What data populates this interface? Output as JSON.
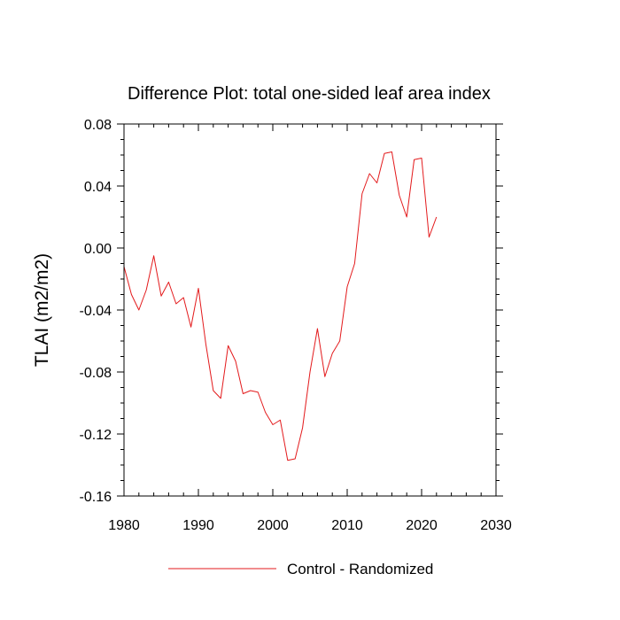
{
  "chart_data": {
    "type": "line",
    "title": "Difference Plot: total one-sided leaf area index",
    "xlabel": "",
    "ylabel": "TLAI  (m2/m2)",
    "xlim": [
      1980,
      2030
    ],
    "ylim": [
      -0.16,
      0.08
    ],
    "x_ticks": [
      1980,
      1990,
      2000,
      2010,
      2020,
      2030
    ],
    "y_ticks": [
      0.08,
      0.04,
      0.0,
      -0.04,
      -0.08,
      -0.12,
      -0.16
    ],
    "x_tick_labels": [
      "1980",
      "1990",
      "2000",
      "2010",
      "2020",
      "2030"
    ],
    "y_tick_labels": [
      "0.08",
      "0.04",
      "0.00",
      "-0.04",
      "-0.08",
      "-0.12",
      "-0.16"
    ],
    "grid": false,
    "legend_position": "bottom",
    "series": [
      {
        "name": "Control - Randomized",
        "color": "#e31a1c",
        "x": [
          1980,
          1981,
          1982,
          1983,
          1984,
          1985,
          1986,
          1987,
          1988,
          1989,
          1990,
          1991,
          1992,
          1993,
          1994,
          1995,
          1996,
          1997,
          1998,
          1999,
          2000,
          2001,
          2002,
          2003,
          2004,
          2005,
          2006,
          2007,
          2008,
          2009,
          2010,
          2011,
          2012,
          2013,
          2014,
          2015,
          2016,
          2017,
          2018,
          2019,
          2020,
          2021,
          2022
        ],
        "values": [
          -0.012,
          -0.03,
          -0.04,
          -0.027,
          -0.005,
          -0.031,
          -0.022,
          -0.036,
          -0.032,
          -0.051,
          -0.026,
          -0.062,
          -0.092,
          -0.097,
          -0.063,
          -0.073,
          -0.094,
          -0.092,
          -0.093,
          -0.106,
          -0.114,
          -0.111,
          -0.137,
          -0.136,
          -0.116,
          -0.08,
          -0.052,
          -0.083,
          -0.068,
          -0.06,
          -0.025,
          -0.01,
          0.035,
          0.048,
          0.042,
          0.061,
          0.062,
          0.034,
          0.02,
          0.057,
          0.058,
          0.007,
          0.02
        ]
      }
    ]
  }
}
